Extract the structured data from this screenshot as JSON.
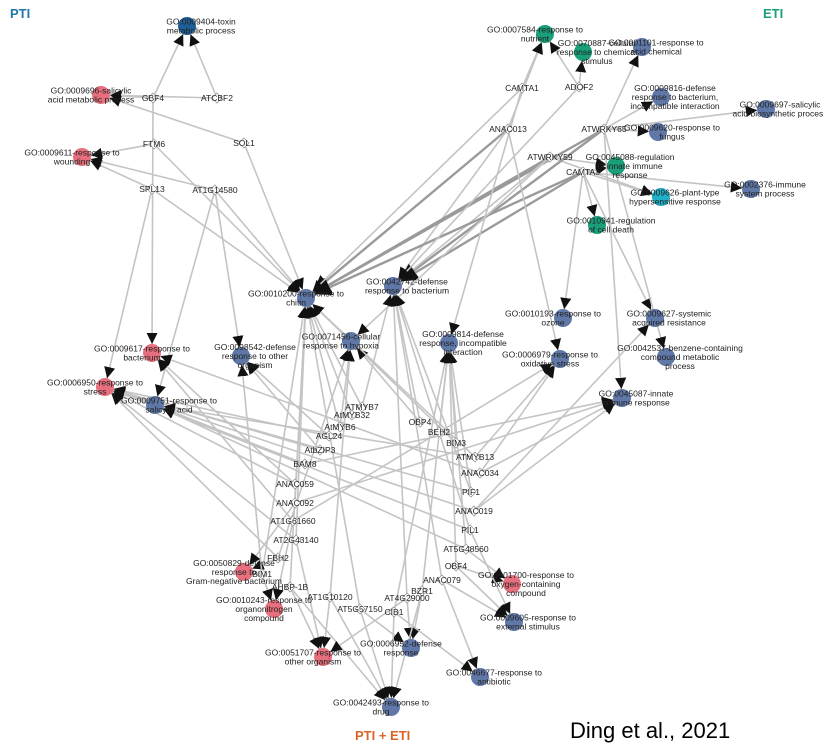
{
  "headers": {
    "pti": "PTI",
    "eti": "ETI",
    "both": "PTI + ETI"
  },
  "citation": "Ding et al., 2021",
  "colors": {
    "pti": "#e8707e",
    "eti": "#1a9f7b",
    "shared": "#5f78a8",
    "dark_blue": "#1e5f98",
    "teal": "#20b0c8",
    "edge": "#c4c4c4"
  },
  "go_terms": [
    {
      "id": "GO:0009404",
      "label": [
        "GO:0009404-toxin",
        "metabolic process"
      ],
      "color": "#1e5f98"
    },
    {
      "id": "GO:0009696",
      "label": [
        "GO:0009696-salicylic",
        "acid metabolic process"
      ],
      "color": "#e8707e"
    },
    {
      "id": "GO:0009611",
      "label": [
        "GO:0009611-response to",
        "wounding"
      ],
      "color": "#e8707e"
    },
    {
      "id": "GO:0007584",
      "label": [
        "GO:0007584-response to",
        "nutrient"
      ],
      "color": "#1a9f7b"
    },
    {
      "id": "GO:0070887",
      "label": [
        "GO:0070887-cellular",
        "response to chemical",
        "stimulus"
      ],
      "color": "#1a9f7b"
    },
    {
      "id": "GO:0001101",
      "label": [
        "GO:0001101-response to",
        "acid chemical"
      ],
      "color": "#5f78a8"
    },
    {
      "id": "GO:0009816",
      "label": [
        "GO:0009816-defense",
        "response to bacterium,",
        "incompatible interaction"
      ],
      "color": "#5f78a8"
    },
    {
      "id": "GO:0009697",
      "label": [
        "GO:0009697-salicylic",
        "acid biosynthetic process"
      ],
      "color": "#5f78a8"
    },
    {
      "id": "GO:0009620",
      "label": [
        "GO:0009620-response to",
        "fungus"
      ],
      "color": "#5f78a8"
    },
    {
      "id": "GO:0045088",
      "label": [
        "GO:0045088-regulation",
        "of innate immune",
        "response"
      ],
      "color": "#1a9f7b"
    },
    {
      "id": "GO:0002376",
      "label": [
        "GO:0002376-immune",
        "system process"
      ],
      "color": "#5f78a8"
    },
    {
      "id": "GO:0009626",
      "label": [
        "GO:0009626-plant-type",
        "hypersensitive response"
      ],
      "color": "#20b0c8"
    },
    {
      "id": "GO:0010941",
      "label": [
        "GO:0010941-regulation",
        "of cell death"
      ],
      "color": "#1a9f7b"
    },
    {
      "id": "GO:0010200",
      "label": [
        "GO:0010200-response to",
        "chitin"
      ],
      "color": "#5f78a8"
    },
    {
      "id": "GO:0042742",
      "label": [
        "GO:0042742-defense",
        "response to bacterium"
      ],
      "color": "#5f78a8"
    },
    {
      "id": "GO:0010193",
      "label": [
        "GO:0010193-response to",
        "ozone"
      ],
      "color": "#5f78a8"
    },
    {
      "id": "GO:0009627",
      "label": [
        "GO:0009627-systemic",
        "acquired resistance"
      ],
      "color": "#5f78a8"
    },
    {
      "id": "GO:0071456",
      "label": [
        "GO:0071456-cellular",
        "response to hypoxia"
      ],
      "color": "#5f78a8"
    },
    {
      "id": "GO:0009814",
      "label": [
        "GO:0009814-defense",
        "response, incompatible",
        "interaction"
      ],
      "color": "#5f78a8"
    },
    {
      "id": "GO:0042537",
      "label": [
        "GO:0042537-benzene-containing",
        "compound metabolic",
        "process"
      ],
      "color": "#5f78a8"
    },
    {
      "id": "GO:0006979",
      "label": [
        "GO:0006979-response to",
        "oxidative stress"
      ],
      "color": "#5f78a8"
    },
    {
      "id": "GO:0009617",
      "label": [
        "GO:0009617-response to",
        "bacterium"
      ],
      "color": "#e8707e"
    },
    {
      "id": "GO:0098542",
      "label": [
        "GO:0098542-defense",
        "response to other",
        "organism"
      ],
      "color": "#5f78a8"
    },
    {
      "id": "GO:0006950",
      "label": [
        "GO:0006950-response to",
        "stress"
      ],
      "color": "#e8707e"
    },
    {
      "id": "GO:0009751",
      "label": [
        "GO:0009751-response to",
        "salicylic acid"
      ],
      "color": "#5f78a8"
    },
    {
      "id": "GO:0045087",
      "label": [
        "GO:0045087-innate",
        "immune response"
      ],
      "color": "#5f78a8"
    },
    {
      "id": "GO:0050829",
      "label": [
        "GO:0050829-defense",
        "response to",
        "Gram-negative bacterium"
      ],
      "color": "#e8707e"
    },
    {
      "id": "GO:1901700",
      "label": [
        "GO:1901700-response to",
        "oxygen-containing",
        "compound"
      ],
      "color": "#e8707e"
    },
    {
      "id": "GO:0010243",
      "label": [
        "GO:0010243-response to",
        "organonitrogen",
        "compound"
      ],
      "color": "#e8707e"
    },
    {
      "id": "GO:0009605",
      "label": [
        "GO:0009605-response to",
        "external stimulus"
      ],
      "color": "#5f78a8"
    },
    {
      "id": "GO:0051707",
      "label": [
        "GO:0051707-response to",
        "other organism"
      ],
      "color": "#e8707e"
    },
    {
      "id": "GO:0006952",
      "label": [
        "GO:0006952-defense",
        "response"
      ],
      "color": "#5f78a8"
    },
    {
      "id": "GO:0046677",
      "label": [
        "GO:0046677-response to",
        "antibiotic"
      ],
      "color": "#5f78a8"
    },
    {
      "id": "GO:0042493",
      "label": [
        "GO:0042493-response to",
        "drug"
      ],
      "color": "#5f78a8"
    }
  ],
  "tfs": [
    "GBF4",
    "ATCBF2",
    "FTM6",
    "SOL1",
    "SPL13",
    "AT1G14580",
    "CAMTA1",
    "ADOF2",
    "ANAC013",
    "ATWRKY65",
    "ATWRKY59",
    "CAMTA3",
    "ATMYB7",
    "AtMYB32",
    "AtMYB6",
    "OBP4",
    "AGL24",
    "BEH2",
    "AtbZIP3",
    "BIM3",
    "BAM8",
    "ATMYB13",
    "ANAC034",
    "ANAC059",
    "PIF1",
    "ANAC092",
    "ANAC019",
    "AT1G61660",
    "PIL1",
    "AT2G43140",
    "AT5G48560",
    "FBH2",
    "OBF4",
    "BIM1",
    "ANAC079",
    "AHBP-1B",
    "BZR1",
    "AT1G10120",
    "AT4G29000",
    "AT5G57150",
    "CIB1"
  ]
}
